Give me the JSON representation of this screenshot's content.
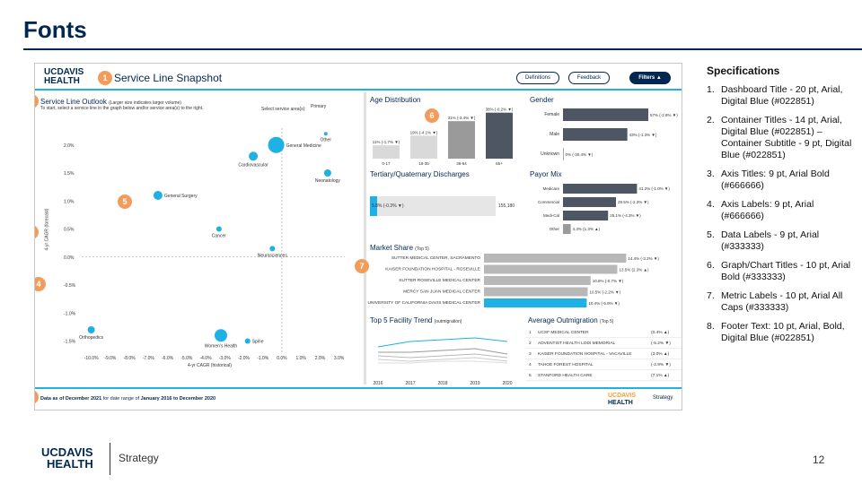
{
  "slide": {
    "title": "Fonts",
    "page_number": "12",
    "footer_logo_line1": "UCDAVIS",
    "footer_logo_line2": "HEALTH",
    "footer_strategy": "Strategy"
  },
  "dashboard": {
    "logo_line1": "UCDAVIS",
    "logo_line2": "HEALTH",
    "title": "Service Line Snapshot",
    "buttons": {
      "definitions": "Definitions",
      "feedback": "Feedback",
      "filters": "Filters ▲"
    },
    "footer_text_prefix": "Data as of December 2021",
    "footer_text_mid": " for date range of ",
    "footer_text_range": "January 2016 to December 2020",
    "footer_logo_line1": "UCDAVIS",
    "footer_logo_line2": "HEALTH",
    "footer_strategy": "Strategy"
  },
  "markers": [
    "1",
    "2",
    "3",
    "4",
    "5",
    "6",
    "7",
    "8"
  ],
  "outlook": {
    "title": "Service Line Outlook",
    "title_note": "(Larger size indicates larger volume)",
    "subtitle": "To start, select a service line in the graph below and/or service area(s) to the right.",
    "select_label": "Select service area(s):",
    "select_value": "Primary",
    "y_axis_title": "4-yr CAGR (forecast)",
    "x_axis_title": "4-yr CAGR (historical)",
    "y_ticks": [
      "2.0%",
      "1.5%",
      "1.0%",
      "0.5%",
      "0.0%",
      "-0.5%",
      "-1.0%",
      "-1.5%"
    ],
    "x_ticks": [
      "-10.0%",
      "-9.0%",
      "-8.0%",
      "-7.0%",
      "-6.0%",
      "-5.0%",
      "-4.0%",
      "-3.0%",
      "-2.0%",
      "-1.0%",
      "0.0%",
      "1.0%",
      "2.0%",
      "3.0%"
    ],
    "points": [
      {
        "label": "General Medicine",
        "x": -0.3,
        "y": 2.0,
        "size": 9
      },
      {
        "label": "Other",
        "x": 2.3,
        "y": 2.2,
        "size": 2
      },
      {
        "label": "Cardiovascular",
        "x": -1.5,
        "y": 1.8,
        "size": 5
      },
      {
        "label": "Neonatology",
        "x": 2.4,
        "y": 1.5,
        "size": 4
      },
      {
        "label": "General Surgery",
        "x": -6.5,
        "y": 1.1,
        "size": 5
      },
      {
        "label": "Cancer",
        "x": -3.3,
        "y": 0.5,
        "size": 3
      },
      {
        "label": "Neurosciences",
        "x": -0.5,
        "y": 0.15,
        "size": 3
      },
      {
        "label": "Orthopedics",
        "x": -10.0,
        "y": -1.3,
        "size": 4
      },
      {
        "label": "Women's Health",
        "x": -3.2,
        "y": -1.4,
        "size": 7
      },
      {
        "label": "Spine",
        "x": -1.8,
        "y": -1.5,
        "size": 3
      }
    ]
  },
  "age": {
    "title": "Age Distribution",
    "bars": [
      {
        "label": "0-17",
        "value": 11,
        "text": "11% (-1.7% ▼)",
        "color": "#d9d9d9"
      },
      {
        "label": "18-35",
        "value": 19,
        "text": "19% (-4.1% ▼)",
        "color": "#d9d9d9"
      },
      {
        "label": "36-64",
        "value": 31,
        "text": "31% (-3.4% ▼)",
        "color": "#9a9a9a"
      },
      {
        "label": "65+",
        "value": 38,
        "text": "38% (-0.2% ▼)",
        "color": "#4e5663"
      }
    ]
  },
  "gender": {
    "title": "Gender",
    "rows": [
      {
        "label": "Female",
        "value": 57,
        "text": "57% (-2.8% ▼)"
      },
      {
        "label": "Male",
        "value": 43,
        "text": "43% (-1.3% ▼)"
      },
      {
        "label": "Unknown",
        "value": 0,
        "text": "0% (-30.4% ▼)"
      }
    ]
  },
  "tertiary": {
    "title": "Tertiary/Quaternary Discharges",
    "share_text": "5.8% (-0.3% ▼)",
    "share_value": 5.8,
    "total": "155,180"
  },
  "payor": {
    "title": "Payor Mix",
    "rows": [
      {
        "label": "Medicare",
        "value": 41.2,
        "text": "41.2% (-1.0% ▼)"
      },
      {
        "label": "Commercial",
        "value": 29.5,
        "text": "29.5% (-2.3% ▼)"
      },
      {
        "label": "Medi-Cal",
        "value": 25.1,
        "text": "25.1% (-4.3% ▼)"
      },
      {
        "label": "Other",
        "value": 4.3,
        "text": "4.3% (1.3% ▲)"
      }
    ]
  },
  "market": {
    "title": "Market Share",
    "title_note": "(Top 5)",
    "rows": [
      {
        "label": "SUTTER MEDICAL CENTER, SACRAMENTO",
        "value": 14.4,
        "text": "14.4% (-3.2% ▼)",
        "highlight": false
      },
      {
        "label": "KAISER FOUNDATION HOSPITAL - ROSEVILLE",
        "value": 13.5,
        "text": "13.5% (2.3% ▲)",
        "highlight": false
      },
      {
        "label": "SUTTER ROSEVILLE MEDICAL CENTER",
        "value": 10.8,
        "text": "10.8% (-0.7% ▼)",
        "highlight": false
      },
      {
        "label": "MERCY SAN JUAN MEDICAL CENTER",
        "value": 10.5,
        "text": "10.5% (-2.2% ▼)",
        "highlight": false
      },
      {
        "label": "UNIVERSITY OF CALIFORNIA DAVIS MEDICAL CENTER",
        "value": 10.4,
        "text": "10.4% (-5.9% ▼)",
        "highlight": true
      }
    ]
  },
  "trend": {
    "title": "Top 5 Facility Trend",
    "title_note": "(outmigration)",
    "years": [
      "2016",
      "2017",
      "2018",
      "2019",
      "2020"
    ]
  },
  "outmigration": {
    "title": "Average Outmigration",
    "title_note": "(Top 5)",
    "rows": [
      {
        "rank": "1",
        "name": "UCSF MEDICAL CENTER",
        "change": "(0.4% ▲)"
      },
      {
        "rank": "2",
        "name": "ADVENTIST HEALTH LODI MEMORIAL",
        "change": "(-5.2% ▼)"
      },
      {
        "rank": "3",
        "name": "KAISER FOUNDATION HOSPITAL - VACAVILLE",
        "change": "(3.0% ▲)"
      },
      {
        "rank": "4",
        "name": "TAHOE FOREST HOSPITAL",
        "change": "(-2.9% ▼)"
      },
      {
        "rank": "5",
        "name": "STANFORD HEALTH CARE",
        "change": "(7.1% ▲)"
      }
    ]
  },
  "specs": {
    "title": "Specifications",
    "items": [
      "Dashboard Title - 20 pt, Arial, Digital Blue (#022851)",
      "Container Titles - 14 pt, Arial, Digital Blue (#022851) – Container Subtitle - 9 pt, Digital Blue (#022851)",
      "Axis Titles: 9 pt, Arial Bold (#666666)",
      "Axis Labels: 9 pt, Arial (#666666)",
      "Data Labels - 9 pt, Arial (#333333)",
      "Graph/Chart Titles - 10 pt, Arial Bold (#333333)",
      "Metric Labels - 10 pt, Arial All Caps (#333333)",
      "Footer Text: 10 pt, Arial, Bold, Digital Blue (#022851)"
    ]
  },
  "colors": {
    "digital_blue": "#022851",
    "accent_cyan": "#1eb1e6",
    "marker_orange": "#f39c5a",
    "bar_dark": "#4e5663",
    "bar_grey": "#b8b8b8"
  }
}
